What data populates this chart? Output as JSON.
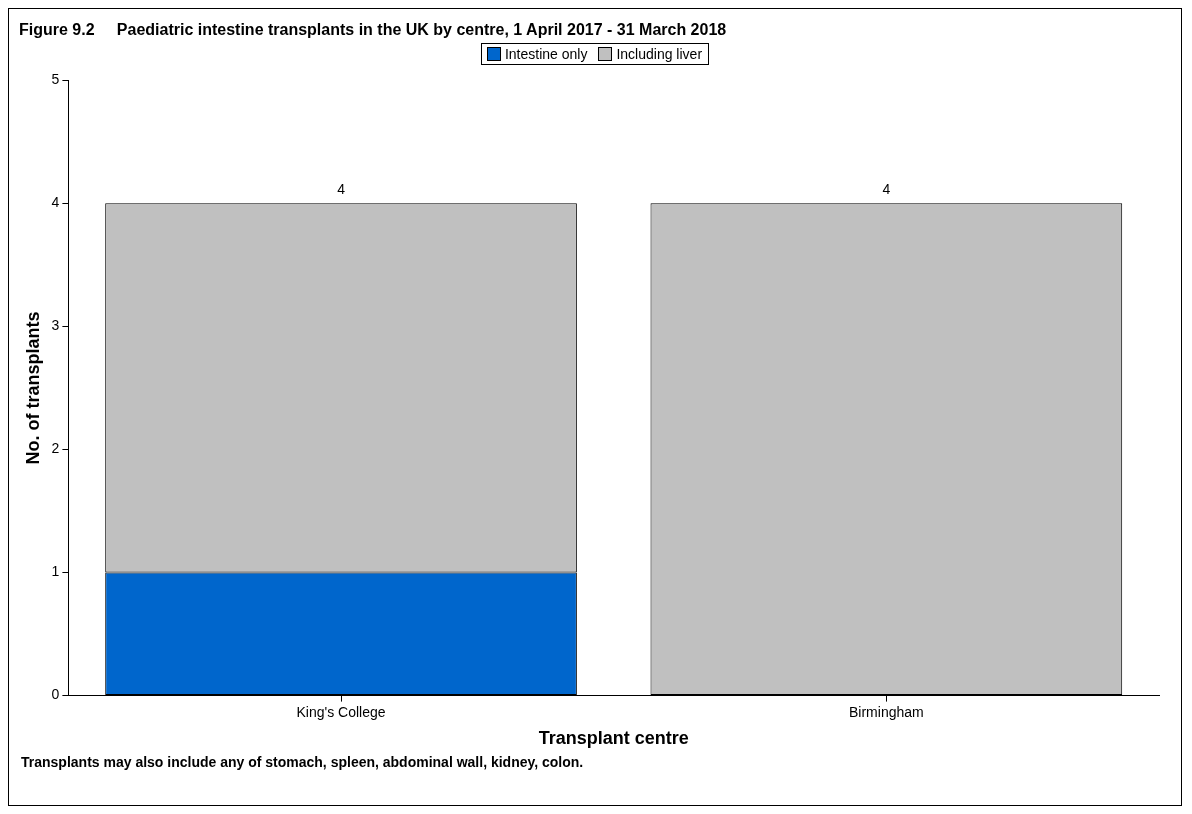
{
  "chart_data": {
    "type": "bar",
    "title": "Figure 9.2     Paediatric intestine transplants in the UK by centre, 1 April 2017 - 31 March 2018",
    "xlabel": "Transplant centre",
    "ylabel": "No. of transplants",
    "categories": [
      "King's College",
      "Birmingham"
    ],
    "stacked": true,
    "series": [
      {
        "name": "Intestine only",
        "color": "#0066cc",
        "values": [
          1,
          0
        ]
      },
      {
        "name": "Including liver",
        "color": "#c0c0c0",
        "values": [
          3,
          4
        ]
      }
    ],
    "totals": [
      "4",
      "4"
    ],
    "ylim": [
      0,
      5
    ],
    "yticks": [
      0,
      1,
      2,
      3,
      4,
      5
    ],
    "grid": false,
    "legend": "top",
    "annotations": [
      "Transplants may also include any of stomach, spleen, abdominal wall, kidney, colon."
    ]
  }
}
